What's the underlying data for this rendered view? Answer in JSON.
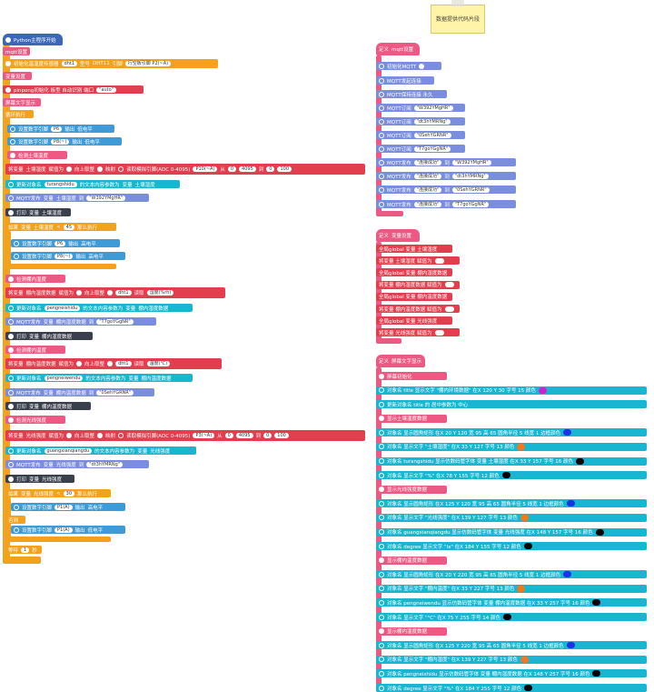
{
  "left": {
    "hat": "Python主程序开始",
    "mqtt_settings": "mqtt设置",
    "dht_init": "初始化温湿度传感器",
    "dht_name": "dht1",
    "dht_type_lbl": "型号",
    "dht_type": "DHT11",
    "dht_pin_lbl": "引脚",
    "dht_pin": "行空板引脚 P2(~A)",
    "var_settings": "变量设置",
    "pinpong_init": "pinpong初始化 板型 自动识别 端口",
    "pinpong_port": "\"auto\"",
    "screen_display": "屏幕文字显示",
    "loop": "循环执行",
    "set_pin_a": "设置数字引脚",
    "pin_p6": "P6",
    "output": "输出",
    "low": "低电平",
    "high": "高电平",
    "pin_p8": "P8(~)",
    "cmt_soil": "检测土壤温度",
    "set_var": "将变量",
    "var_soil": "土壤湿度",
    "assign": "赋值为",
    "round_up": "向上取整",
    "map": "映射",
    "read_analog": "读取模拟引脚(ADC 0-4095)",
    "pin_p10": "P10(~A)",
    "from": "从",
    "v0": "0",
    "v4095": "4095",
    "to": "到",
    "v100": "100",
    "update_obj": "更新对象名",
    "obj_turangshidu": "turangshidu",
    "text_content": "的文本内容参数为",
    "var_word": "变量",
    "mqtt_send": "MQTT发布",
    "send_to": "到",
    "topic1": "\"W392YMgHR\"",
    "print": "打印",
    "if": "如果",
    "lt": "<",
    "v45": "45",
    "then": "那么执行",
    "else": "否则",
    "cmt_air_hum": "检测棚内湿度",
    "var_air_hum": "棚内湿度数据",
    "read_dht": "读取",
    "dht_hum": "湿度(%rh)",
    "obj_pengneishidu": "pengneishidu",
    "topic2": "\"T7goYGgNR\"",
    "cmt_air_temp": "检测棚内温度",
    "var_air_temp": "棚内温度数据",
    "dht_temp": "温度(℃)",
    "obj_pengneiwendu": "pengneiwendu",
    "topic3": "\"0SehYGRNR\"",
    "cmt_light": "检测光线强度",
    "var_light": "光线强度",
    "pin_p3": "P3(~A)",
    "obj_guangxianqiangdu": "guangxianqiangdu",
    "topic4": "\"dt3hYMRNg\"",
    "v30": "30",
    "pin_p1": "P1(A)",
    "wait": "等待",
    "wait_val": "1",
    "wait_unit": "秒"
  },
  "note": {
    "text": "数据提供代码片段"
  },
  "mqtt_group": {
    "def": "定义",
    "name": "mqtt设置",
    "init": "初始化MQTT",
    "connect": "MQTT发起连接",
    "keepalive": "MQTT保持连接 永久",
    "sub_lbl": "MQTT订阅",
    "subs": [
      "\"W392YMgHR\"",
      "\"dt3hYMRNg\"",
      "\"0SehYGRNR\"",
      "\"T7goYGgNR\""
    ],
    "pub_lbl": "MQTT发布",
    "pub_msg": "\"连接成功\"",
    "to": "到",
    "pubs": [
      "\"W392YMgHR\"",
      "\"dt3hYMRNg\"",
      "\"0SehYGRNR\"",
      "\"T7goYGgNR\""
    ]
  },
  "var_group": {
    "def": "定义",
    "name": "变量设置",
    "rows": [
      {
        "kind": "global",
        "text": "全局global 变量 土壤湿度"
      },
      {
        "kind": "set",
        "text": "将变量 土壤湿度 赋值为"
      },
      {
        "kind": "global",
        "text": "全局global 变量 棚内湿度数据"
      },
      {
        "kind": "set",
        "text": "将变量 棚内湿度数据 赋值为"
      },
      {
        "kind": "global",
        "text": "全局global 变量 棚内温度数据"
      },
      {
        "kind": "set",
        "text": "将变量 棚内温度数据 赋值为"
      },
      {
        "kind": "global",
        "text": "全局global 变量 光线强度"
      },
      {
        "kind": "set",
        "text": "将变量 光线强度 赋值为"
      }
    ]
  },
  "screen_group": {
    "def": "定义",
    "name": "屏幕文字显示",
    "rows": [
      {
        "type": "cmt",
        "text": "屏幕初始化"
      },
      {
        "type": "b",
        "text": "对象名 title 显示文字 \"棚内环境数据\" 在X 120 Y 30 字号 15 颜色",
        "dot": "#d21fd2"
      },
      {
        "type": "b",
        "text": "更新对象名 title 的 居中参数为 中心"
      },
      {
        "type": "cmt",
        "text": "显示土壤湿度数据"
      },
      {
        "type": "b",
        "text": "对象名 显示圆角矩形 在X 20 Y 120 宽 95 高 65 圆角半径 5 线宽 1 边框颜色",
        "dot": "#1a33e6"
      },
      {
        "type": "b",
        "text": "对象名 显示文字 \"土壤湿度\" 在X 33 Y 127 字号 13 颜色",
        "dot": "#f07a18"
      },
      {
        "type": "b",
        "text": "对象名 turangshidu 显示仿数码管字体 变量 土壤湿度 在X 33 Y 157 字号 16 颜色",
        "dot": "#000000"
      },
      {
        "type": "b",
        "text": "对象名 显示文字 \"%\" 在X 78 Y 155 字号 12 颜色",
        "dot": "#000000"
      },
      {
        "type": "cmt",
        "text": "显示光线强度数据"
      },
      {
        "type": "b",
        "text": "对象名 显示圆角矩形 在X 125 Y 120 宽 95 高 65 圆角半径 5 线宽 1 边框颜色",
        "dot": "#1a33e6"
      },
      {
        "type": "b",
        "text": "对象名 显示文字 \"光线强度\" 在X 139 Y 127 字号 13 颜色",
        "dot": "#f07a18"
      },
      {
        "type": "b",
        "text": "对象名 guangxianqiangdu 显示仿数码管字体 变量 光线强度 在X 148 Y 157 字号 16 颜色",
        "dot": "#000000"
      },
      {
        "type": "b",
        "text": "对象名 degree 显示文字 \"lx\" 在X 184 Y 155 字号 12 颜色",
        "dot": "#000000"
      },
      {
        "type": "cmt",
        "text": "显示棚内温度数据"
      },
      {
        "type": "b",
        "text": "对象名 显示圆角矩形 在X 20 Y 220 宽 95 高 65 圆角半径 5 线宽 1 边框颜色",
        "dot": "#1a33e6"
      },
      {
        "type": "b",
        "text": "对象名 显示文字 \"棚内温度\" 在X 33 Y 227 字号 13 颜色",
        "dot": "#f07a18"
      },
      {
        "type": "b",
        "text": "对象名 pengneiwendu 显示仿数码管字体 变量 棚内温度数据 在X 33 Y 257 字号 16 颜色",
        "dot": "#000000"
      },
      {
        "type": "b",
        "text": "对象名 显示文字 \"°C\" 在X 75 Y 255 字号 14 颜色",
        "dot": "#000000"
      },
      {
        "type": "cmt",
        "text": "显示棚内湿度数据"
      },
      {
        "type": "b",
        "text": "对象名 显示圆角矩形 在X 125 Y 220 宽 95 高 65 圆角半径 5 线宽 1 边框颜色",
        "dot": "#1a33e6"
      },
      {
        "type": "b",
        "text": "对象名 显示文字 \"棚内湿度\" 在X 139 Y 227 字号 13 颜色",
        "dot": "#f07a18"
      },
      {
        "type": "b",
        "text": "对象名 pengneishidu 显示仿数码管字体 变量 棚内湿度数据 在X 148 Y 257 字号 16 颜色",
        "dot": "#000000"
      },
      {
        "type": "b",
        "text": "对象名 degree 显示文字 \"%\" 在X 184 Y 255 字号 12 颜色",
        "dot": "#000000"
      }
    ]
  }
}
